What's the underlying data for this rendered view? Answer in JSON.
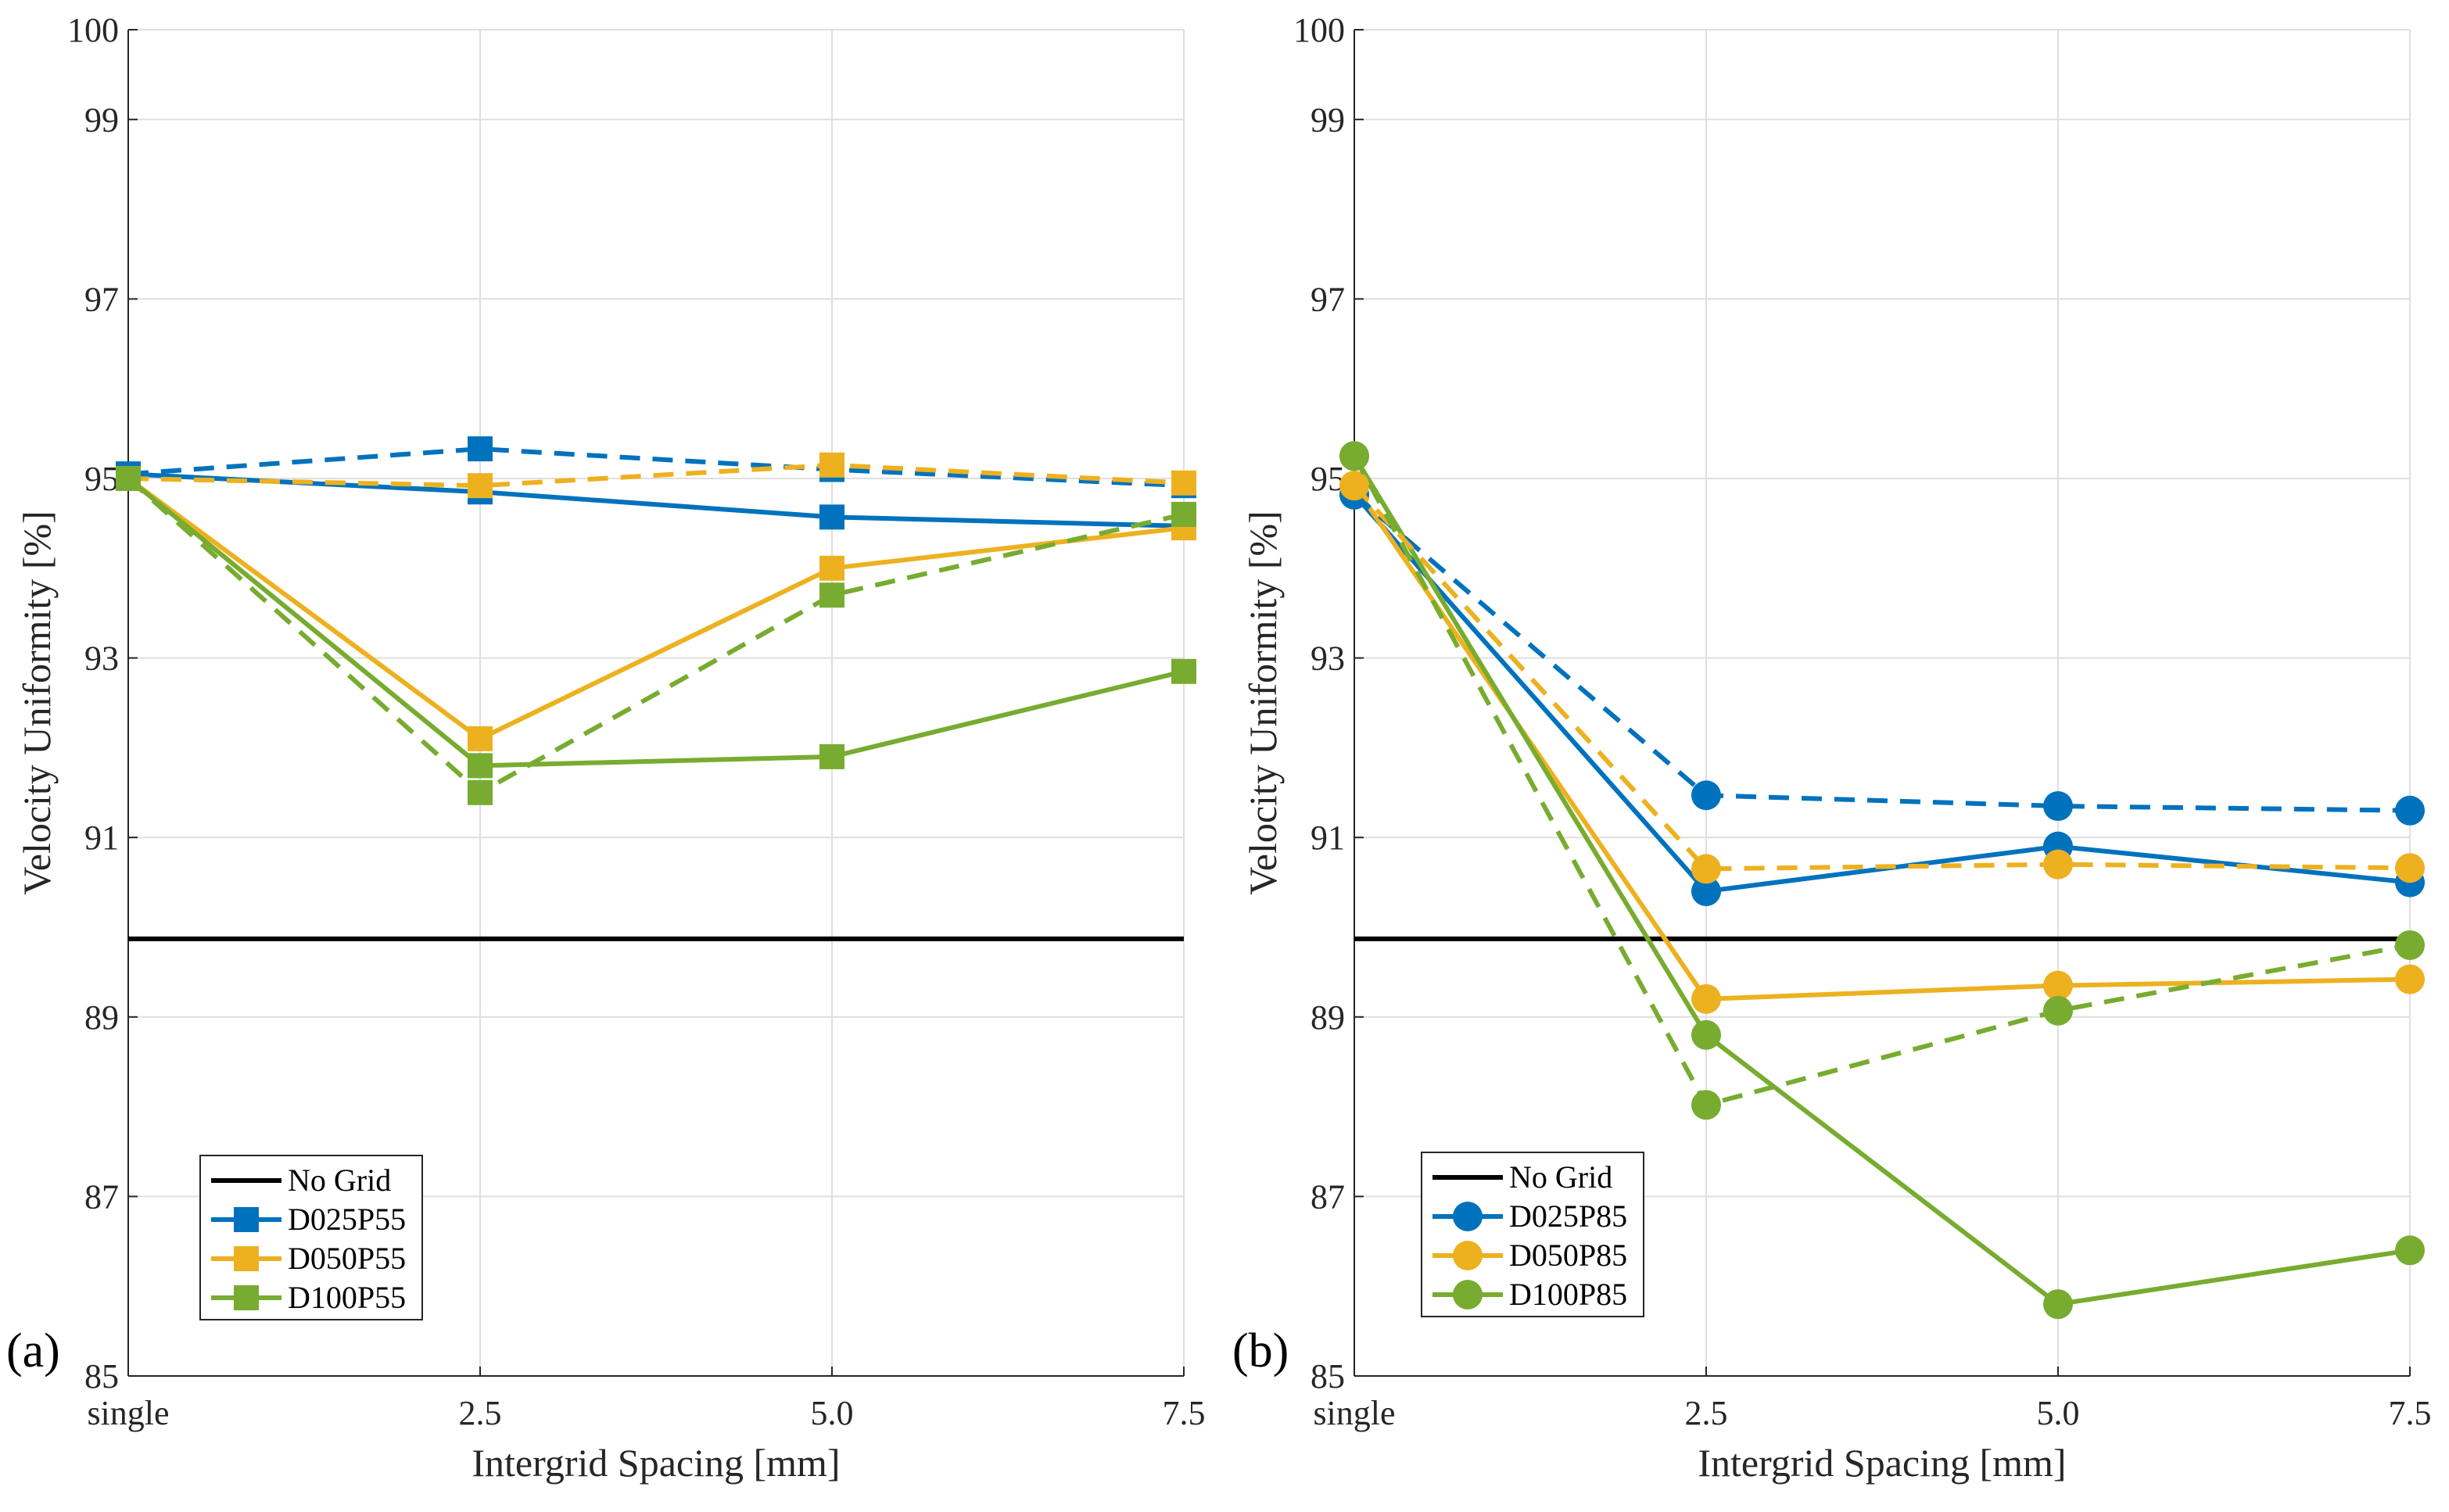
{
  "chart_data": [
    {
      "type": "line",
      "panel_label": "(a)",
      "xlabel": "Intergrid Spacing [mm]",
      "ylabel": "Velocity Uniformity [%]",
      "categories": [
        "single",
        "2.5",
        "5.0",
        "7.5"
      ],
      "x": [
        0,
        2.5,
        5.0,
        7.5
      ],
      "ylim": [
        85,
        100
      ],
      "yticks": [
        "85",
        "87",
        "89",
        "91",
        "93",
        "95",
        "97",
        "99",
        "100"
      ],
      "grid": true,
      "marker": "square",
      "legend_position": "bottom-left",
      "legend": [
        "No Grid",
        "D025P55",
        "D050P55",
        "D100P55"
      ],
      "reference": {
        "name": "No Grid",
        "value": 89.87,
        "color": "#000000"
      },
      "series": [
        {
          "name": "D025P55",
          "color": "#0072BD",
          "style": "solid",
          "values": [
            95.05,
            94.85,
            94.57,
            94.47
          ]
        },
        {
          "name": "D050P55",
          "color": "#EDB120",
          "style": "solid",
          "values": [
            95.0,
            92.1,
            94.0,
            94.45
          ]
        },
        {
          "name": "D100P55",
          "color": "#77AC30",
          "style": "solid",
          "values": [
            95.0,
            91.8,
            91.9,
            92.85
          ]
        },
        {
          "name": "D025P55 (dashed)",
          "color": "#0072BD",
          "style": "dashed",
          "values": [
            95.05,
            95.33,
            95.1,
            94.92
          ]
        },
        {
          "name": "D050P55 (dashed)",
          "color": "#EDB120",
          "style": "dashed",
          "values": [
            95.0,
            94.92,
            95.15,
            94.95
          ]
        },
        {
          "name": "D100P55 (dashed)",
          "color": "#77AC30",
          "style": "dashed",
          "values": [
            95.0,
            91.5,
            93.7,
            94.6
          ]
        }
      ]
    },
    {
      "type": "line",
      "panel_label": "(b)",
      "xlabel": "Intergrid Spacing [mm]",
      "ylabel": "Velocity Uniformity [%]",
      "categories": [
        "single",
        "2.5",
        "5.0",
        "7.5"
      ],
      "x": [
        0,
        2.5,
        5.0,
        7.5
      ],
      "ylim": [
        85,
        100
      ],
      "yticks": [
        "85",
        "87",
        "89",
        "91",
        "93",
        "95",
        "97",
        "99",
        "100"
      ],
      "grid": true,
      "marker": "circle",
      "legend_position": "bottom-left",
      "legend": [
        "No Grid",
        "D025P85",
        "D050P85",
        "D100P85"
      ],
      "reference": {
        "name": "No Grid",
        "value": 89.87,
        "color": "#000000"
      },
      "series": [
        {
          "name": "D025P85",
          "color": "#0072BD",
          "style": "solid",
          "values": [
            94.82,
            90.4,
            90.9,
            90.5
          ]
        },
        {
          "name": "D050P85",
          "color": "#EDB120",
          "style": "solid",
          "values": [
            94.92,
            89.2,
            89.35,
            89.42
          ]
        },
        {
          "name": "D100P85",
          "color": "#77AC30",
          "style": "solid",
          "values": [
            95.25,
            88.8,
            85.8,
            86.4
          ]
        },
        {
          "name": "D025P85 (dashed)",
          "color": "#0072BD",
          "style": "dashed",
          "values": [
            94.82,
            91.47,
            91.35,
            91.3
          ]
        },
        {
          "name": "D050P85 (dashed)",
          "color": "#EDB120",
          "style": "dashed",
          "values": [
            94.92,
            90.65,
            90.7,
            90.66
          ]
        },
        {
          "name": "D100P85 (dashed)",
          "color": "#77AC30",
          "style": "dashed",
          "values": [
            95.25,
            88.02,
            89.07,
            89.8
          ]
        }
      ]
    }
  ]
}
